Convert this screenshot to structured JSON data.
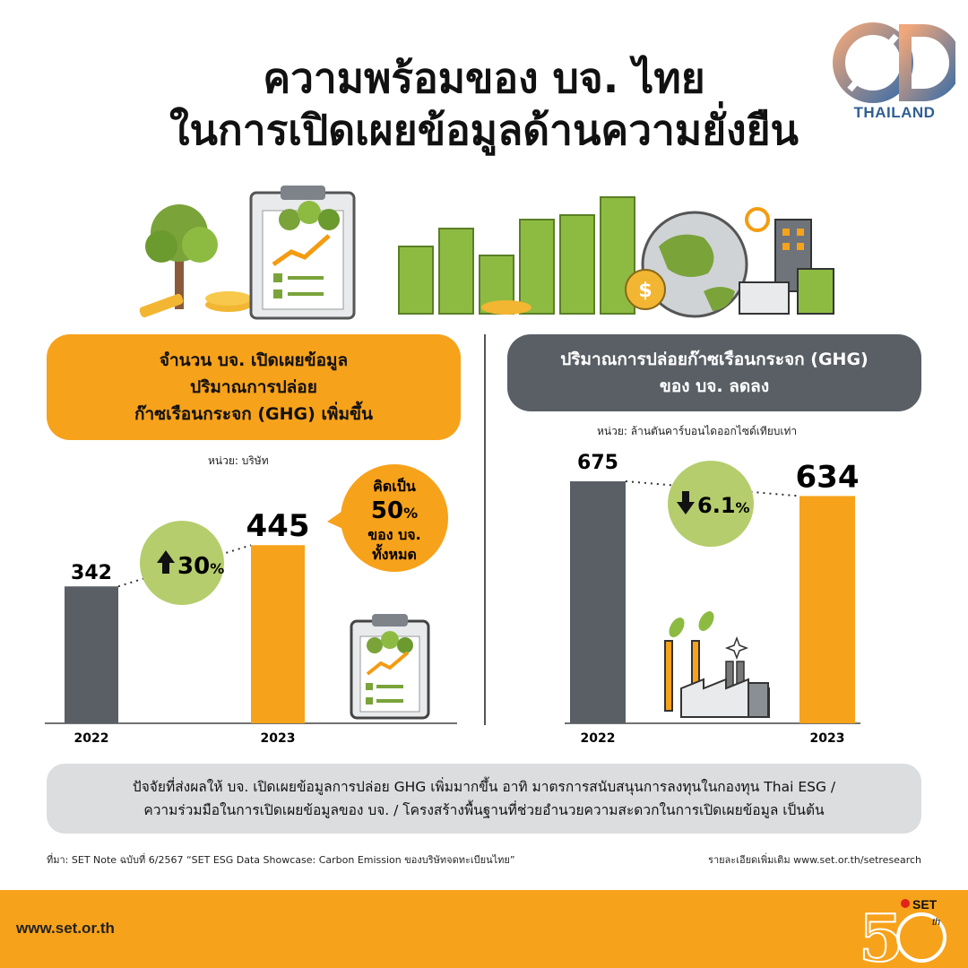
{
  "header": {
    "title_line1": "ความพร้อมของ บจ. ไทย",
    "title_line2": "ในการเปิดเผยข้อมูลด้านความยั่งยืน",
    "logo_text": "THAILAND"
  },
  "left_panel": {
    "heading_line1": "จำนวน บจ. เปิดเผยข้อมูล",
    "heading_line2": "ปริมาณการปล่อย",
    "heading_line3": "ก๊าซเรือนกระจก (GHG) เพิ่มขึ้น",
    "unit": "หน่วย: บริษัท",
    "change_label": "30",
    "change_unit": "%",
    "callout_line1": "คิดเป็น",
    "callout_value": "50",
    "callout_unit": "%",
    "callout_line2": "ของ บจ.",
    "callout_line3": "ทั้งหมด"
  },
  "right_panel": {
    "heading_line1": "ปริมาณการปล่อยก๊าซเรือนกระจก (GHG)",
    "heading_line2": "ของ บจ. ลดลง",
    "unit": "หน่วย: ล้านตันคาร์บอนไดออกไซด์เทียบเท่า",
    "change_label": "6.1",
    "change_unit": "%"
  },
  "summary": {
    "line1": "ปัจจัยที่ส่งผลให้ บจ. เปิดเผยข้อมูลการปล่อย GHG เพิ่มมากขึ้น อาทิ มาตรการสนับสนุนการลงทุนในกองทุน Thai ESG /",
    "line2": "ความร่วมมือในการเปิดเผยข้อมูลของ บจ. / โครงสร้างพื้นฐานที่ช่วยอำนวยความสะดวกในการเปิดเผยข้อมูล เป็นต้น"
  },
  "footer": {
    "source": "ที่มา: SET Note ฉบับที่ 6/2567 “SET ESG Data Showcase: Carbon Emission ของบริษัทจดทะเบียนไทย”",
    "more_info": "รายละเอียดเพิ่มเติม www.set.or.th/setresearch",
    "url": "www.set.or.th",
    "anniv_badge": "SET",
    "anniv_sup": "th"
  },
  "colors": {
    "orange": "#f7a21b",
    "dark_gray": "#595f65",
    "green_circle": "#b5cd6c",
    "footer": "#f7a21b"
  },
  "chart_data": [
    {
      "type": "bar",
      "categories": [
        "2022",
        "2023"
      ],
      "values": [
        342,
        445
      ],
      "ylim": [
        0,
        600
      ]
    },
    {
      "type": "bar",
      "categories": [
        "2022",
        "2023"
      ],
      "values": [
        675,
        634
      ],
      "ylim": [
        0,
        800
      ]
    }
  ]
}
